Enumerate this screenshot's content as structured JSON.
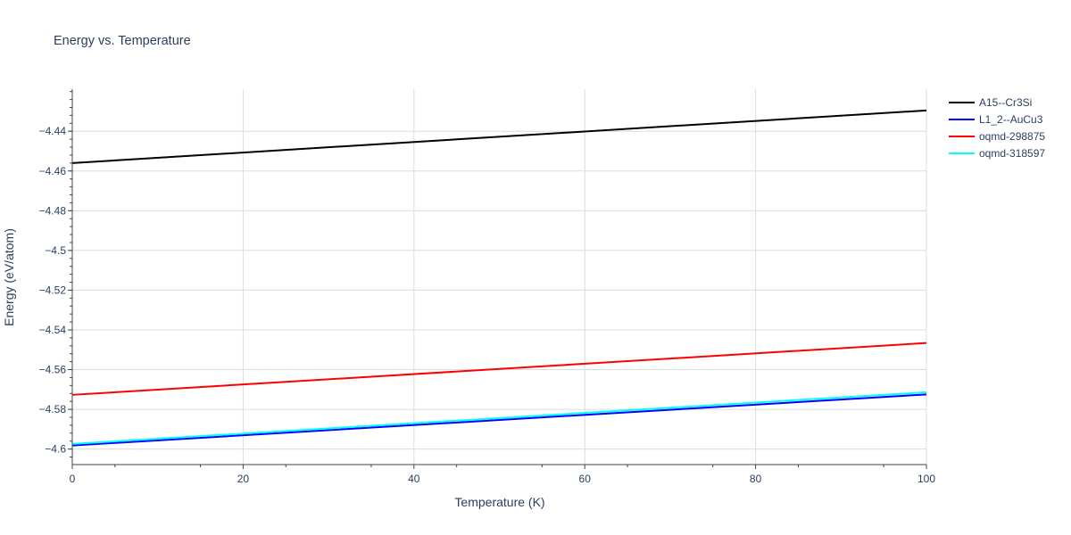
{
  "chart_data": {
    "type": "line",
    "title": "Energy vs. Temperature",
    "xlabel": "Temperature (K)",
    "ylabel": "Energy (eV/atom)",
    "xlim": [
      0,
      100
    ],
    "ylim": [
      -4.6078,
      -4.4188
    ],
    "x_ticks": [
      0,
      20,
      40,
      60,
      80,
      100
    ],
    "x_tick_labels": [
      "0",
      "20",
      "40",
      "60",
      "80",
      "100"
    ],
    "y_ticks": [
      -4.44,
      -4.46,
      -4.48,
      -4.5,
      -4.52,
      -4.54,
      -4.56,
      -4.58,
      -4.6
    ],
    "y_tick_labels": [
      "−4.44",
      "−4.46",
      "−4.48",
      "−4.5",
      "−4.52",
      "−4.54",
      "−4.56",
      "−4.58",
      "−4.6"
    ],
    "grid": true,
    "legend_position": "top-right",
    "series": [
      {
        "name": "A15--Cr3Si",
        "color": "#000000",
        "x": [
          0,
          100
        ],
        "y": [
          -4.456,
          -4.4295
        ]
      },
      {
        "name": "L1_2--AuCu3",
        "color": "#0000ff",
        "x": [
          0,
          100
        ],
        "y": [
          -4.5982,
          -4.5725
        ]
      },
      {
        "name": "oqmd-298875",
        "color": "#ff0000",
        "x": [
          0,
          100
        ],
        "y": [
          -4.5727,
          -4.5466
        ]
      },
      {
        "name": "oqmd-318597",
        "color": "#00ffff",
        "x": [
          0,
          100
        ],
        "y": [
          -4.5974,
          -4.5714
        ]
      }
    ]
  }
}
